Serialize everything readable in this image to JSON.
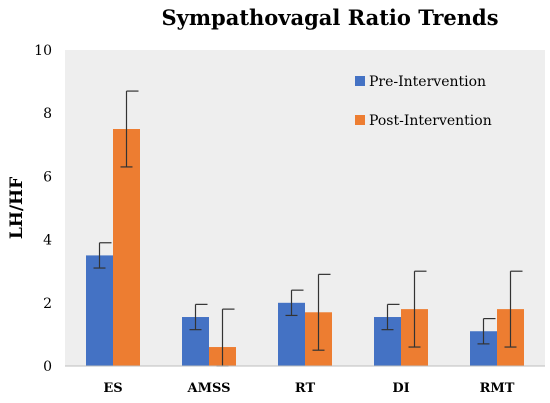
{
  "chart_data": {
    "type": "bar",
    "title": "Sympathovagal Ratio Trends",
    "xlabel": "",
    "ylabel": "LH/HF",
    "ylim": [
      0,
      10
    ],
    "yticks": [
      0,
      2,
      4,
      6,
      8,
      10
    ],
    "categories": [
      "ES",
      "AMSS",
      "RT",
      "DI",
      "RMT"
    ],
    "series": [
      {
        "name": "Pre-Intervention",
        "color": "#4472c4",
        "values": [
          3.5,
          1.55,
          2.0,
          1.55,
          1.1
        ],
        "error": [
          0.4,
          0.4,
          0.4,
          0.4,
          0.4
        ]
      },
      {
        "name": "Post-Intervention",
        "color": "#ed7d31",
        "values": [
          7.5,
          0.6,
          1.7,
          1.8,
          1.8
        ],
        "error": [
          1.2,
          1.2,
          1.2,
          1.2,
          1.2
        ]
      }
    ],
    "grid": false,
    "legend_position": "top-right",
    "plot_background": "#eeeeee"
  }
}
